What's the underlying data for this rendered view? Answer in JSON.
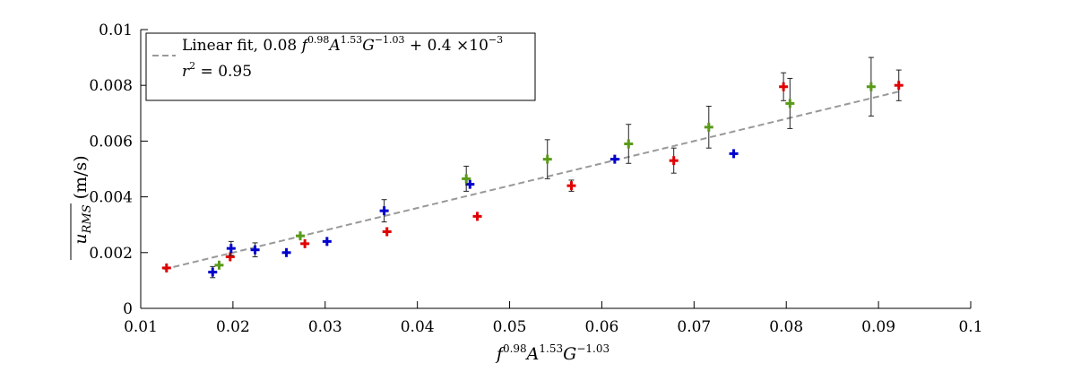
{
  "chart_data": {
    "type": "scatter",
    "title": "",
    "xlabel": "f^0.98 A^1.53 G^-1.03",
    "ylabel": "u_RMS (m/s)",
    "xlim": [
      0.01,
      0.1
    ],
    "ylim": [
      0,
      0.01
    ],
    "xticks": [
      0.01,
      0.02,
      0.03,
      0.04,
      0.05,
      0.06,
      0.07,
      0.08,
      0.09,
      0.1
    ],
    "yticks": [
      0,
      0.002,
      0.004,
      0.006,
      0.008,
      0.01
    ],
    "xtick_labels": [
      "0.01",
      "0.02",
      "0.03",
      "0.04",
      "0.05",
      "0.06",
      "0.07",
      "0.08",
      "0.09",
      "0.1"
    ],
    "ytick_labels": [
      "0",
      "0.002",
      "0.004",
      "0.006",
      "0.008",
      "0.01"
    ],
    "grid": false,
    "legend": {
      "position": "top-left",
      "fit_label_prefix": "Linear fit, 0.08 ",
      "fit_label_expr": "f^0.98 A^1.53 G^-1.03 + 0.4 ×10^-3",
      "r2_label": "r² = 0.95"
    },
    "fit_line": {
      "slope": 0.08,
      "intercept": 0.0004,
      "x_range": [
        0.0125,
        0.0925
      ]
    },
    "series": [
      {
        "name": "red",
        "color": "#e00000",
        "points": [
          {
            "x": 0.0128,
            "y": 0.00145,
            "err": 0
          },
          {
            "x": 0.0197,
            "y": 0.00185,
            "err": 0
          },
          {
            "x": 0.0278,
            "y": 0.00232,
            "err": 0
          },
          {
            "x": 0.0367,
            "y": 0.00275,
            "err": 0
          },
          {
            "x": 0.0465,
            "y": 0.0033,
            "err": 0
          },
          {
            "x": 0.0567,
            "y": 0.0044,
            "err": 0.0002
          },
          {
            "x": 0.0678,
            "y": 0.0053,
            "err": 0.00045
          },
          {
            "x": 0.0797,
            "y": 0.00795,
            "err": 0.0005
          },
          {
            "x": 0.0922,
            "y": 0.008,
            "err": 0.00055
          }
        ]
      },
      {
        "name": "blue",
        "color": "#0000cc",
        "points": [
          {
            "x": 0.0178,
            "y": 0.0013,
            "err": 0.0002
          },
          {
            "x": 0.0198,
            "y": 0.00215,
            "err": 0.00025
          },
          {
            "x": 0.0224,
            "y": 0.0021,
            "err": 0.00025
          },
          {
            "x": 0.0258,
            "y": 0.002,
            "err": 0
          },
          {
            "x": 0.0302,
            "y": 0.0024,
            "err": 0
          },
          {
            "x": 0.0364,
            "y": 0.0035,
            "err": 0.0004
          },
          {
            "x": 0.0457,
            "y": 0.00445,
            "err": 0
          },
          {
            "x": 0.0614,
            "y": 0.00535,
            "err": 0
          },
          {
            "x": 0.0743,
            "y": 0.00555,
            "err": 0
          }
        ]
      },
      {
        "name": "green",
        "color": "#5a9a1a",
        "points": [
          {
            "x": 0.0185,
            "y": 0.00155,
            "err": 0
          },
          {
            "x": 0.0273,
            "y": 0.0026,
            "err": 0
          },
          {
            "x": 0.0453,
            "y": 0.00465,
            "err": 0.00045
          },
          {
            "x": 0.0541,
            "y": 0.00535,
            "err": 0.0007
          },
          {
            "x": 0.0629,
            "y": 0.0059,
            "err": 0.0007
          },
          {
            "x": 0.0716,
            "y": 0.0065,
            "err": 0.00075
          },
          {
            "x": 0.0804,
            "y": 0.00735,
            "err": 0.0009
          },
          {
            "x": 0.0892,
            "y": 0.00795,
            "err": 0.00105
          }
        ]
      }
    ]
  }
}
